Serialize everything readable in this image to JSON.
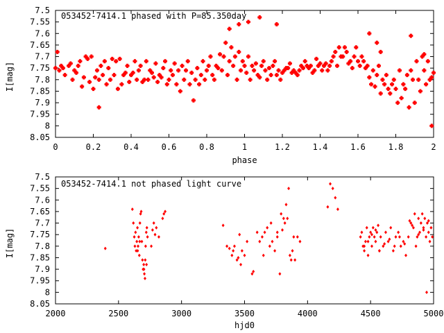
{
  "chart_data": [
    {
      "type": "scatter",
      "title": "053452-7414.1 phased with P=85.350day",
      "xlabel": "phase",
      "ylabel": "I[mag]",
      "xlim": [
        0,
        2
      ],
      "ylim": [
        8.05,
        7.5
      ],
      "y_inverted": true,
      "xticks": [
        "0",
        "0.2",
        "0.4",
        "0.6",
        "0.8",
        "1",
        "1.2",
        "1.4",
        "1.6",
        "1.8",
        "2"
      ],
      "yticks": [
        "7.5",
        "7.55",
        "7.6",
        "7.65",
        "7.7",
        "7.75",
        "7.8",
        "7.85",
        "7.9",
        "7.95",
        "8",
        "8.05"
      ],
      "marker_color": "#ff0000",
      "series": [
        {
          "x": [
            0.0,
            0.01,
            0.02,
            0.03,
            0.05,
            0.07,
            0.09,
            0.1,
            0.12,
            0.13,
            0.15,
            0.16,
            0.18,
            0.19,
            0.2,
            0.22,
            0.23,
            0.24,
            0.25,
            0.26,
            0.27,
            0.28,
            0.29,
            0.3,
            0.31,
            0.32,
            0.33,
            0.34,
            0.36,
            0.37,
            0.38,
            0.4,
            0.42,
            0.43,
            0.44,
            0.45,
            0.47,
            0.48,
            0.5,
            0.52,
            0.53,
            0.55,
            0.57,
            0.58,
            0.6,
            0.62,
            0.63,
            0.64,
            0.65,
            0.66,
            0.67,
            0.68,
            0.69,
            0.7,
            0.71,
            0.72,
            0.73,
            0.74,
            0.75,
            0.76,
            0.77,
            0.78,
            0.79,
            0.8,
            0.81,
            0.82,
            0.83,
            0.84,
            0.85,
            0.86,
            0.87,
            0.88,
            0.89,
            0.9,
            0.91,
            0.92,
            0.93,
            0.94,
            0.95,
            0.96,
            0.97,
            0.98,
            0.99,
            1.0,
            1.01,
            1.02,
            1.03,
            1.04,
            1.05,
            1.06,
            1.07,
            1.08,
            1.09,
            1.1,
            1.11,
            1.12,
            1.13,
            1.14,
            1.15,
            1.16,
            1.17,
            1.18,
            1.19,
            1.2,
            1.22,
            1.24,
            1.26,
            1.28,
            1.3,
            1.32,
            1.34,
            1.36,
            1.38,
            1.4,
            1.42,
            1.44,
            1.45,
            1.46,
            1.47,
            1.48,
            1.49,
            1.5,
            1.51,
            1.52,
            1.53,
            1.54,
            1.55,
            1.56,
            1.57,
            1.58,
            1.59,
            1.6,
            1.61,
            1.62,
            1.63,
            1.64,
            1.65,
            1.66,
            1.67,
            1.68,
            1.69,
            1.7,
            1.71,
            1.72,
            1.73,
            1.74,
            1.75,
            1.76,
            1.77,
            1.78,
            1.79,
            1.8,
            1.81,
            1.82,
            1.83,
            1.84,
            1.85,
            1.86,
            1.87,
            1.88,
            1.89,
            1.9,
            1.91,
            1.92,
            1.93,
            1.94,
            1.95,
            1.96,
            1.97,
            1.98,
            1.99,
            2.0,
            0.04,
            0.08,
            0.11,
            0.14,
            0.17,
            0.21,
            0.35,
            0.39,
            0.41,
            0.46,
            0.49,
            0.51,
            0.54,
            0.56,
            0.59,
            0.61,
            1.21,
            1.23,
            1.25,
            1.27,
            1.29,
            1.31,
            1.33,
            1.35,
            1.37,
            1.39,
            1.41,
            1.43,
            0.92,
            0.97,
            1.02,
            1.08,
            1.17,
            1.66,
            1.7,
            1.72,
            1.88,
            1.95,
            1.99,
            0.23
          ],
          "y": [
            7.75,
            7.68,
            7.76,
            7.74,
            7.78,
            7.74,
            7.8,
            7.76,
            7.74,
            7.72,
            7.79,
            7.7,
            7.81,
            7.7,
            7.84,
            7.76,
            7.8,
            7.74,
            7.78,
            7.72,
            7.82,
            7.75,
            7.8,
            7.71,
            7.78,
            7.72,
            7.84,
            7.71,
            7.78,
            7.77,
            7.74,
            7.78,
            7.72,
            7.8,
            7.76,
            7.74,
            7.8,
            7.72,
            7.76,
            7.79,
            7.73,
            7.78,
            7.75,
            7.72,
            7.8,
            7.78,
            7.73,
            7.82,
            7.76,
            7.85,
            7.74,
            7.8,
            7.76,
            7.72,
            7.82,
            7.77,
            7.89,
            7.8,
            7.75,
            7.82,
            7.78,
            7.72,
            7.8,
            7.76,
            7.74,
            7.7,
            7.78,
            7.8,
            7.74,
            7.75,
            7.69,
            7.76,
            7.7,
            7.64,
            7.78,
            7.72,
            7.66,
            7.74,
            7.7,
            7.8,
            7.68,
            7.76,
            7.72,
            7.74,
            7.77,
            7.7,
            7.8,
            7.74,
            7.76,
            7.73,
            7.78,
            7.79,
            7.74,
            7.72,
            7.76,
            7.8,
            7.75,
            7.78,
            7.74,
            7.72,
            7.78,
            7.76,
            7.8,
            7.77,
            7.75,
            7.73,
            7.76,
            7.78,
            7.74,
            7.72,
            7.75,
            7.77,
            7.71,
            7.73,
            7.74,
            7.76,
            7.74,
            7.72,
            7.7,
            7.68,
            7.74,
            7.66,
            7.7,
            7.7,
            7.66,
            7.68,
            7.73,
            7.72,
            7.75,
            7.7,
            7.66,
            7.72,
            7.74,
            7.7,
            7.72,
            7.75,
            7.74,
            7.79,
            7.82,
            7.76,
            7.83,
            7.78,
            7.74,
            7.86,
            7.8,
            7.82,
            7.78,
            7.84,
            7.86,
            7.82,
            7.8,
            7.84,
            7.9,
            7.76,
            7.88,
            7.82,
            7.84,
            7.78,
            7.92,
            7.76,
            7.8,
            7.9,
            7.72,
            7.8,
            7.85,
            7.7,
            7.76,
            7.82,
            7.72,
            7.8,
            7.79,
            7.77,
            7.75,
            7.73,
            7.77,
            7.83,
            7.71,
            7.79,
            7.82,
            7.81,
            7.77,
            7.81,
            7.8,
            7.77,
            7.81,
            7.79,
            7.82,
            7.76,
            7.76,
            7.75,
            7.77,
            7.77,
            7.76,
            7.75,
            7.74,
            7.74,
            7.76,
            7.74,
            7.76,
            7.73,
            7.58,
            7.56,
            7.55,
            7.53,
            7.56,
            7.6,
            7.64,
            7.68,
            7.61,
            7.69,
            8.0,
            7.92
          ]
        }
      ]
    },
    {
      "type": "scatter",
      "title": "053452-7414.1 not phased light curve",
      "xlabel": "hjd0",
      "ylabel": "I[mag]",
      "xlim": [
        2000,
        5000
      ],
      "ylim": [
        8.05,
        7.5
      ],
      "y_inverted": true,
      "xticks": [
        "2000",
        "2500",
        "3000",
        "3500",
        "4000",
        "4500",
        "5000"
      ],
      "yticks": [
        "7.5",
        "7.55",
        "7.6",
        "7.65",
        "7.7",
        "7.75",
        "7.8",
        "7.85",
        "7.9",
        "7.95",
        "8",
        "8.05"
      ],
      "marker_color": "#ff0000",
      "series": [
        {
          "x": [
            2395,
            2610,
            2618,
            2625,
            2630,
            2635,
            2640,
            2645,
            2650,
            2655,
            2660,
            2665,
            2670,
            2675,
            2680,
            2685,
            2690,
            2695,
            2700,
            2705,
            2710,
            2715,
            2720,
            2725,
            2730,
            2760,
            2770,
            2780,
            2790,
            2800,
            2820,
            2850,
            2860,
            2870,
            3330,
            3380,
            3400,
            3420,
            3440,
            3460,
            3480,
            3500,
            3520,
            3570,
            3620,
            3640,
            3660,
            3680,
            3700,
            3720,
            3740,
            3760,
            3780,
            3800,
            3820,
            3840,
            3850,
            3860,
            3880,
            3900,
            3920,
            3940,
            4160,
            4180,
            4200,
            4220,
            4240,
            4420,
            4430,
            4440,
            4450,
            4460,
            4470,
            4480,
            4490,
            4500,
            4510,
            4520,
            4530,
            4540,
            4550,
            4560,
            4570,
            4580,
            4600,
            4620,
            4640,
            4660,
            4680,
            4700,
            4720,
            4740,
            4760,
            4780,
            4800,
            4820,
            4840,
            4850,
            4860,
            4870,
            4880,
            4890,
            4900,
            4910,
            4920,
            4930,
            4940,
            4950,
            4960,
            4970,
            4980,
            4990,
            4945,
            2652,
            2668,
            2702,
            2712,
            2722,
            3360,
            3410,
            3450,
            3470,
            3560,
            3600,
            3650,
            3710,
            3760,
            3790,
            3810,
            3830,
            3870,
            3890,
            4450,
            4480,
            4510,
            4540,
            4570,
            4610,
            4650,
            4690,
            4730,
            4770,
            4810,
            4830,
            4880,
            4920,
            4960
          ],
          "y": [
            7.81,
            7.64,
            7.7,
            7.76,
            7.8,
            7.74,
            7.82,
            7.78,
            7.72,
            7.8,
            7.76,
            7.84,
            7.7,
            7.66,
            7.65,
            7.78,
            7.86,
            7.9,
            7.88,
            7.92,
            7.94,
            7.8,
            7.74,
            7.72,
            7.76,
            7.8,
            7.73,
            7.7,
            7.75,
            7.72,
            7.76,
            7.68,
            7.66,
            7.65,
            7.71,
            7.81,
            7.84,
            7.8,
            7.86,
            7.75,
            7.82,
            7.84,
            7.78,
            7.91,
            7.78,
            7.76,
            7.74,
            7.72,
            7.8,
            7.78,
            7.82,
            7.76,
            7.92,
            7.73,
            7.7,
            7.68,
            7.55,
            7.84,
            7.82,
            7.86,
            7.76,
            7.78,
            7.63,
            7.53,
            7.55,
            7.59,
            7.64,
            7.76,
            7.74,
            7.8,
            7.82,
            7.78,
            7.72,
            7.84,
            7.76,
            7.74,
            7.8,
            7.72,
            7.76,
            7.78,
            7.74,
            7.71,
            7.82,
            7.76,
            7.8,
            7.74,
            7.78,
            7.72,
            7.82,
            7.76,
            7.74,
            7.8,
            7.78,
            7.84,
            7.76,
            7.7,
            7.72,
            7.66,
            7.8,
            7.76,
            7.68,
            7.74,
            7.7,
            7.66,
            7.72,
            7.68,
            7.76,
            7.7,
            7.74,
            7.78,
            7.72,
            7.76,
            8.0,
            7.82,
            7.78,
            7.9,
            7.86,
            7.88,
            7.8,
            7.82,
            7.85,
            7.88,
            7.92,
            7.74,
            7.84,
            7.7,
            7.74,
            7.66,
            7.68,
            7.62,
            7.86,
            7.76,
            7.8,
            7.78,
            7.75,
            7.73,
            7.82,
            7.79,
            7.77,
            7.8,
            7.76,
            7.79,
            7.69,
            7.71,
            7.75,
            7.73,
            7.69
          ]
        }
      ]
    }
  ]
}
